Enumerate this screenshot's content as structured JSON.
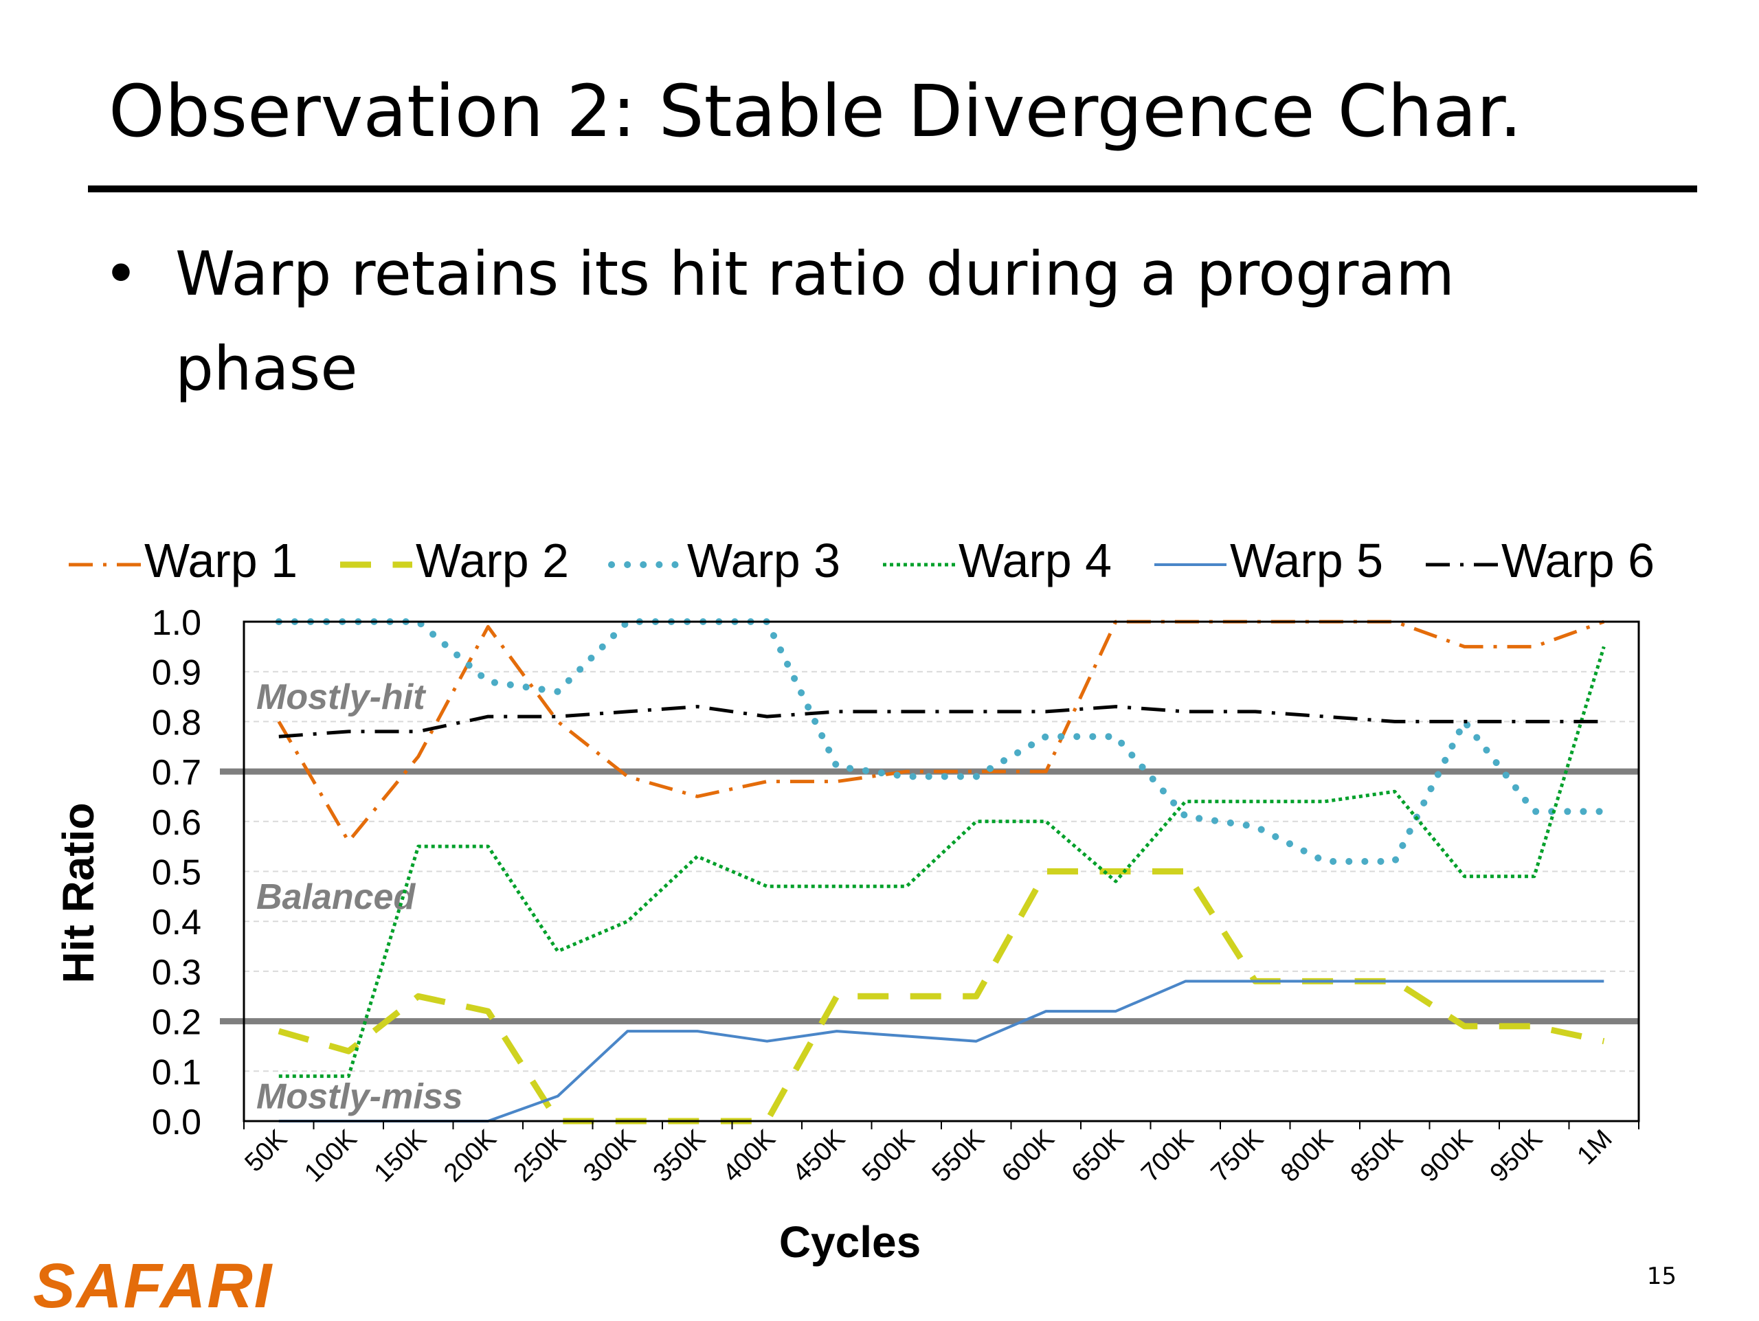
{
  "slide": {
    "title": "Observation 2: Stable Divergence Char.",
    "bullets": [
      {
        "marker": "•",
        "text": "Warp retains its hit ratio during a program phase"
      }
    ],
    "logo_text": "SAFARI",
    "page_number": "15"
  },
  "colors": {
    "brand": "#e46c0a",
    "threshold_line": "#7f7f7f",
    "region_label": "#808080"
  },
  "chart_data": {
    "type": "line",
    "title": "",
    "xlabel": "Cycles",
    "ylabel": "Hit Ratio",
    "categories": [
      "50K",
      "100K",
      "150K",
      "200K",
      "250K",
      "300K",
      "350K",
      "400K",
      "450K",
      "500K",
      "550K",
      "600K",
      "650K",
      "700K",
      "750K",
      "800K",
      "850K",
      "900K",
      "950K",
      "1M"
    ],
    "ylim": [
      0,
      1
    ],
    "yticks": [
      "0.0",
      "0.1",
      "0.2",
      "0.3",
      "0.4",
      "0.5",
      "0.6",
      "0.7",
      "0.8",
      "0.9",
      "1.0"
    ],
    "grid": "horizontal dashed",
    "legend_position": "top",
    "thresholds": [
      0.7,
      0.2
    ],
    "region_labels": [
      {
        "text": "Mostly-hit",
        "y": 0.85
      },
      {
        "text": "Balanced",
        "y": 0.45
      },
      {
        "text": "Mostly-miss",
        "y": 0.05
      }
    ],
    "series": [
      {
        "name": "Warp 1",
        "color": "#e46c0a",
        "dash": "long-dash-dot",
        "width": 5,
        "values": [
          0.8,
          0.56,
          0.73,
          0.99,
          0.8,
          0.69,
          0.65,
          0.68,
          0.68,
          0.7,
          0.7,
          0.7,
          1.0,
          1.0,
          1.0,
          1.0,
          1.0,
          0.95,
          0.95,
          1.0
        ]
      },
      {
        "name": "Warp 2",
        "color": "#cfd21f",
        "dash": "long-dash",
        "width": 9,
        "values": [
          0.18,
          0.14,
          0.25,
          0.22,
          0.0,
          0.0,
          0.0,
          0.0,
          0.25,
          0.25,
          0.25,
          0.5,
          0.5,
          0.5,
          0.28,
          0.28,
          0.28,
          0.19,
          0.19,
          0.16
        ]
      },
      {
        "name": "Warp 3",
        "color": "#4bacc6",
        "dash": "dot",
        "width": 10,
        "values": [
          1.0,
          1.0,
          1.0,
          0.88,
          0.86,
          1.0,
          1.0,
          1.0,
          0.71,
          0.69,
          0.69,
          0.77,
          0.77,
          0.61,
          0.59,
          0.52,
          0.52,
          0.8,
          0.62,
          0.62
        ]
      },
      {
        "name": "Warp 4",
        "color": "#00a02a",
        "dash": "fine-dot",
        "width": 5,
        "values": [
          0.09,
          0.09,
          0.55,
          0.55,
          0.34,
          0.4,
          0.53,
          0.47,
          0.47,
          0.47,
          0.6,
          0.6,
          0.48,
          0.64,
          0.64,
          0.64,
          0.66,
          0.49,
          0.49,
          0.95
        ]
      },
      {
        "name": "Warp 5",
        "color": "#4a86c8",
        "dash": "solid",
        "width": 4,
        "values": [
          0.0,
          0.0,
          0.0,
          0.0,
          0.05,
          0.18,
          0.18,
          0.16,
          0.18,
          0.17,
          0.16,
          0.22,
          0.22,
          0.28,
          0.28,
          0.28,
          0.28,
          0.28,
          0.28,
          0.28
        ]
      },
      {
        "name": "Warp 6",
        "color": "#000000",
        "dash": "long-dash-dot",
        "width": 5,
        "values": [
          0.77,
          0.78,
          0.78,
          0.81,
          0.81,
          0.82,
          0.83,
          0.81,
          0.82,
          0.82,
          0.82,
          0.82,
          0.83,
          0.82,
          0.82,
          0.81,
          0.8,
          0.8,
          0.8,
          0.8
        ]
      }
    ]
  }
}
